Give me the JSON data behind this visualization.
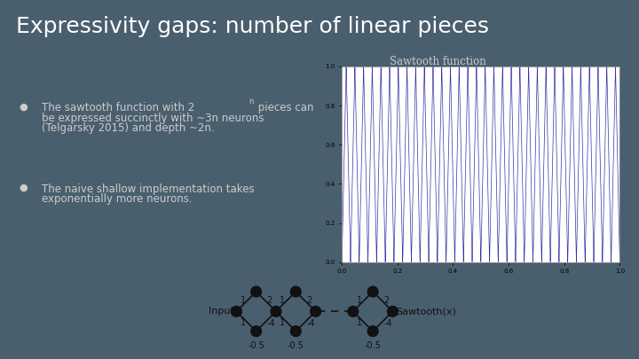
{
  "title": "Expressivity gaps: number of linear pieces",
  "background_color": "#4a5f6e",
  "title_color": "#ffffff",
  "title_fontsize": 18,
  "sawtooth_label": "Sawtooth function",
  "sawtooth_color": "#3333aa",
  "n_periods": 32,
  "plot_bg": "#ffffff",
  "text_color": "#cccccc",
  "bullet_color": "#cccccc",
  "network_bg": "#d8d8d8",
  "bullet1_lines": [
    "The sawtooth function with 2ⁿ pieces can",
    "be expressed succinctly with ~3n neurons",
    "(Telgarsky 2015) and depth ~2n."
  ],
  "bullet2_lines": [
    "The naive shallow implementation takes",
    "exponentially more neurons."
  ],
  "node_color": "#111111",
  "line_color": "#111111",
  "bullet_marker": "●"
}
